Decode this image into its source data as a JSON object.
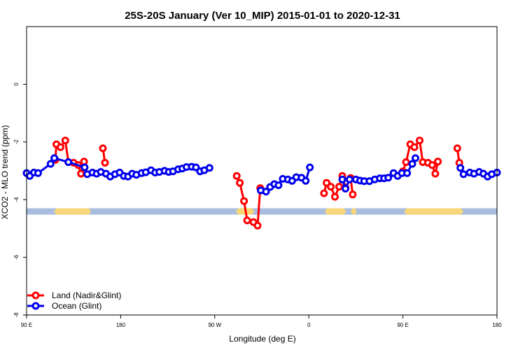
{
  "chart_data": {
    "type": "line",
    "title": "25S-20S January (Ver 10_MIP)   2015-01-01 to 2020-12-31",
    "xlabel": "Longitude (deg E)",
    "ylabel": "XCO2 - MLO trend (ppm)",
    "xlim": [
      90,
      540
    ],
    "ylim": [
      -8,
      2
    ],
    "x_ticks": [
      {
        "value": 90,
        "label": "90 E"
      },
      {
        "value": 180,
        "label": "180"
      },
      {
        "value": 270,
        "label": "90 W"
      },
      {
        "value": 360,
        "label": "0"
      },
      {
        "value": 450,
        "label": "90 E"
      },
      {
        "value": 540,
        "label": "180"
      }
    ],
    "y_ticks": [
      {
        "value": 0,
        "label": "0"
      },
      {
        "value": -2,
        "label": "-2"
      },
      {
        "value": -4,
        "label": "-4"
      },
      {
        "value": -6,
        "label": "-6"
      },
      {
        "value": -8,
        "label": "-8"
      }
    ],
    "legend_position": "bottom-left",
    "surface_band": {
      "y_range": [
        -4.52,
        -4.3
      ],
      "ocean_color": "#a8bde0",
      "land_color": "#f7d77a",
      "land_segments": [
        [
          116,
          152
        ],
        [
          290,
          308
        ],
        [
          375,
          396
        ],
        [
          400,
          406
        ],
        [
          451,
          508
        ]
      ]
    },
    "series": [
      {
        "name": "Land (Nadir&Glint)",
        "color": "#ff0000",
        "segments": [
          [
            [
              117.5,
              -2.62
            ],
            [
              118.5,
              -2.08
            ],
            [
              122.5,
              -2.18
            ],
            [
              127,
              -1.95
            ],
            [
              130,
              -2.7
            ],
            [
              135,
              -2.72
            ],
            [
              139.5,
              -2.8
            ],
            [
              142,
              -3.1
            ],
            [
              145,
              -2.68
            ]
          ],
          [
            [
              163,
              -2.22
            ],
            [
              165,
              -2.72
            ]
          ],
          [
            [
              291,
              -3.18
            ],
            [
              294,
              -3.42
            ],
            [
              298,
              -4.05
            ],
            [
              301,
              -4.72
            ],
            [
              307,
              -4.78
            ],
            [
              311,
              -4.9
            ],
            [
              313.5,
              -3.6
            ]
          ],
          [
            [
              374.5,
              -3.78
            ],
            [
              377,
              -3.42
            ],
            [
              381,
              -3.55
            ],
            [
              385,
              -3.9
            ],
            [
              389,
              -3.55
            ],
            [
              392,
              -3.18
            ],
            [
              395,
              -3.58
            ]
          ],
          [
            [
              400,
              -3.25
            ],
            [
              402,
              -3.82
            ]
          ],
          [
            [
              450,
              -3.02
            ],
            [
              453,
              -2.7
            ],
            [
              457,
              -2.08
            ],
            [
              461,
              -2.18
            ],
            [
              466,
              -1.95
            ],
            [
              469,
              -2.7
            ],
            [
              474,
              -2.72
            ],
            [
              478,
              -2.8
            ],
            [
              481,
              -3.1
            ],
            [
              483.5,
              -2.68
            ]
          ],
          [
            [
              502,
              -2.22
            ],
            [
              504,
              -2.72
            ]
          ]
        ]
      },
      {
        "name": "Ocean (Glint)",
        "color": "#0000ee",
        "segments": [
          [
            [
              90,
              -3.08
            ],
            [
              93,
              -3.18
            ],
            [
              97,
              -3.06
            ],
            [
              101,
              -3.08
            ],
            [
              113,
              -2.76
            ],
            [
              116.5,
              -2.56
            ],
            [
              130,
              -2.7
            ],
            [
              145.5,
              -2.88
            ],
            [
              148,
              -3.12
            ],
            [
              153,
              -3.06
            ],
            [
              157,
              -3.1
            ],
            [
              161,
              -3.04
            ],
            [
              166,
              -3.1
            ],
            [
              170,
              -3.2
            ],
            [
              174.5,
              -3.12
            ],
            [
              179,
              -3.06
            ],
            [
              183,
              -3.18
            ],
            [
              187,
              -3.2
            ],
            [
              191,
              -3.1
            ],
            [
              195,
              -3.14
            ],
            [
              200,
              -3.08
            ],
            [
              204,
              -3.05
            ],
            [
              209,
              -2.98
            ],
            [
              213,
              -3.06
            ],
            [
              217,
              -3.04
            ],
            [
              222,
              -3.0
            ],
            [
              226,
              -3.04
            ],
            [
              230,
              -3.02
            ],
            [
              235,
              -2.95
            ],
            [
              239,
              -2.92
            ],
            [
              243,
              -2.87
            ],
            [
              248,
              -2.86
            ],
            [
              252,
              -2.88
            ],
            [
              256,
              -3.02
            ],
            [
              260,
              -2.98
            ],
            [
              265,
              -2.9
            ]
          ],
          [
            [
              314,
              -3.68
            ],
            [
              319,
              -3.72
            ],
            [
              323,
              -3.56
            ],
            [
              327,
              -3.46
            ],
            [
              331,
              -3.5
            ],
            [
              335,
              -3.28
            ],
            [
              340,
              -3.3
            ],
            [
              344,
              -3.35
            ],
            [
              348,
              -3.22
            ],
            [
              353,
              -3.24
            ],
            [
              357,
              -3.35
            ],
            [
              361,
              -2.88
            ]
          ],
          [
            [
              392,
              -3.3
            ],
            [
              395,
              -3.62
            ],
            [
              399,
              -3.3
            ],
            [
              405,
              -3.3
            ],
            [
              409,
              -3.34
            ],
            [
              413,
              -3.36
            ],
            [
              418,
              -3.36
            ],
            [
              423,
              -3.3
            ],
            [
              428,
              -3.26
            ],
            [
              432,
              -3.26
            ],
            [
              436,
              -3.24
            ],
            [
              441,
              -3.08
            ],
            [
              445,
              -3.18
            ],
            [
              449,
              -3.08
            ],
            [
              454,
              -3.08
            ],
            [
              459,
              -2.76
            ],
            [
              462,
              -2.56
            ]
          ],
          [
            [
              505,
              -2.9
            ],
            [
              508,
              -3.12
            ],
            [
              514,
              -3.06
            ],
            [
              518,
              -3.1
            ],
            [
              523,
              -3.04
            ],
            [
              527,
              -3.1
            ],
            [
              531,
              -3.2
            ],
            [
              535,
              -3.12
            ],
            [
              540,
              -3.06
            ]
          ]
        ]
      }
    ]
  }
}
